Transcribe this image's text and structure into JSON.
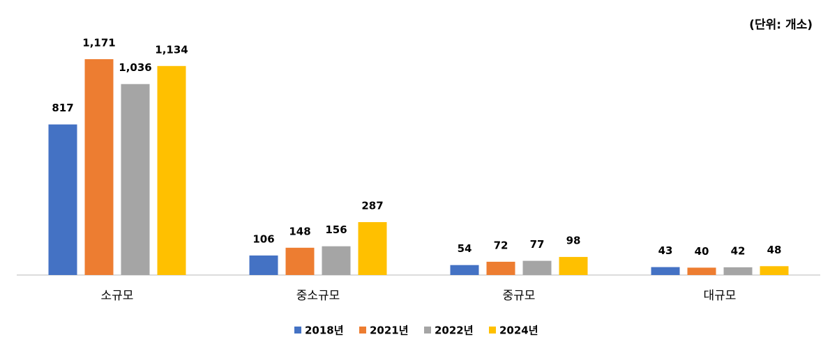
{
  "chart_data": {
    "type": "bar",
    "unit_label": "(단위: 개소)",
    "categories": [
      "소규모",
      "중소규모",
      "중규모",
      "대규모"
    ],
    "series": [
      {
        "name": "2018년",
        "color": "#4472c4",
        "values": [
          817,
          106,
          54,
          43
        ]
      },
      {
        "name": "2021년",
        "color": "#ed7d31",
        "values": [
          1171,
          148,
          72,
          40
        ],
        "value_labels": [
          "1,171",
          "148",
          "72",
          "40"
        ]
      },
      {
        "name": "2022년",
        "color": "#a5a5a5",
        "values": [
          1036,
          156,
          77,
          42
        ],
        "value_labels": [
          "1,036",
          "156",
          "77",
          "42"
        ]
      },
      {
        "name": "2024년",
        "color": "#ffc000",
        "values": [
          1134,
          287,
          98,
          48
        ],
        "value_labels": [
          "1,134",
          "287",
          "98",
          "48"
        ]
      }
    ],
    "legend": "bottom"
  }
}
